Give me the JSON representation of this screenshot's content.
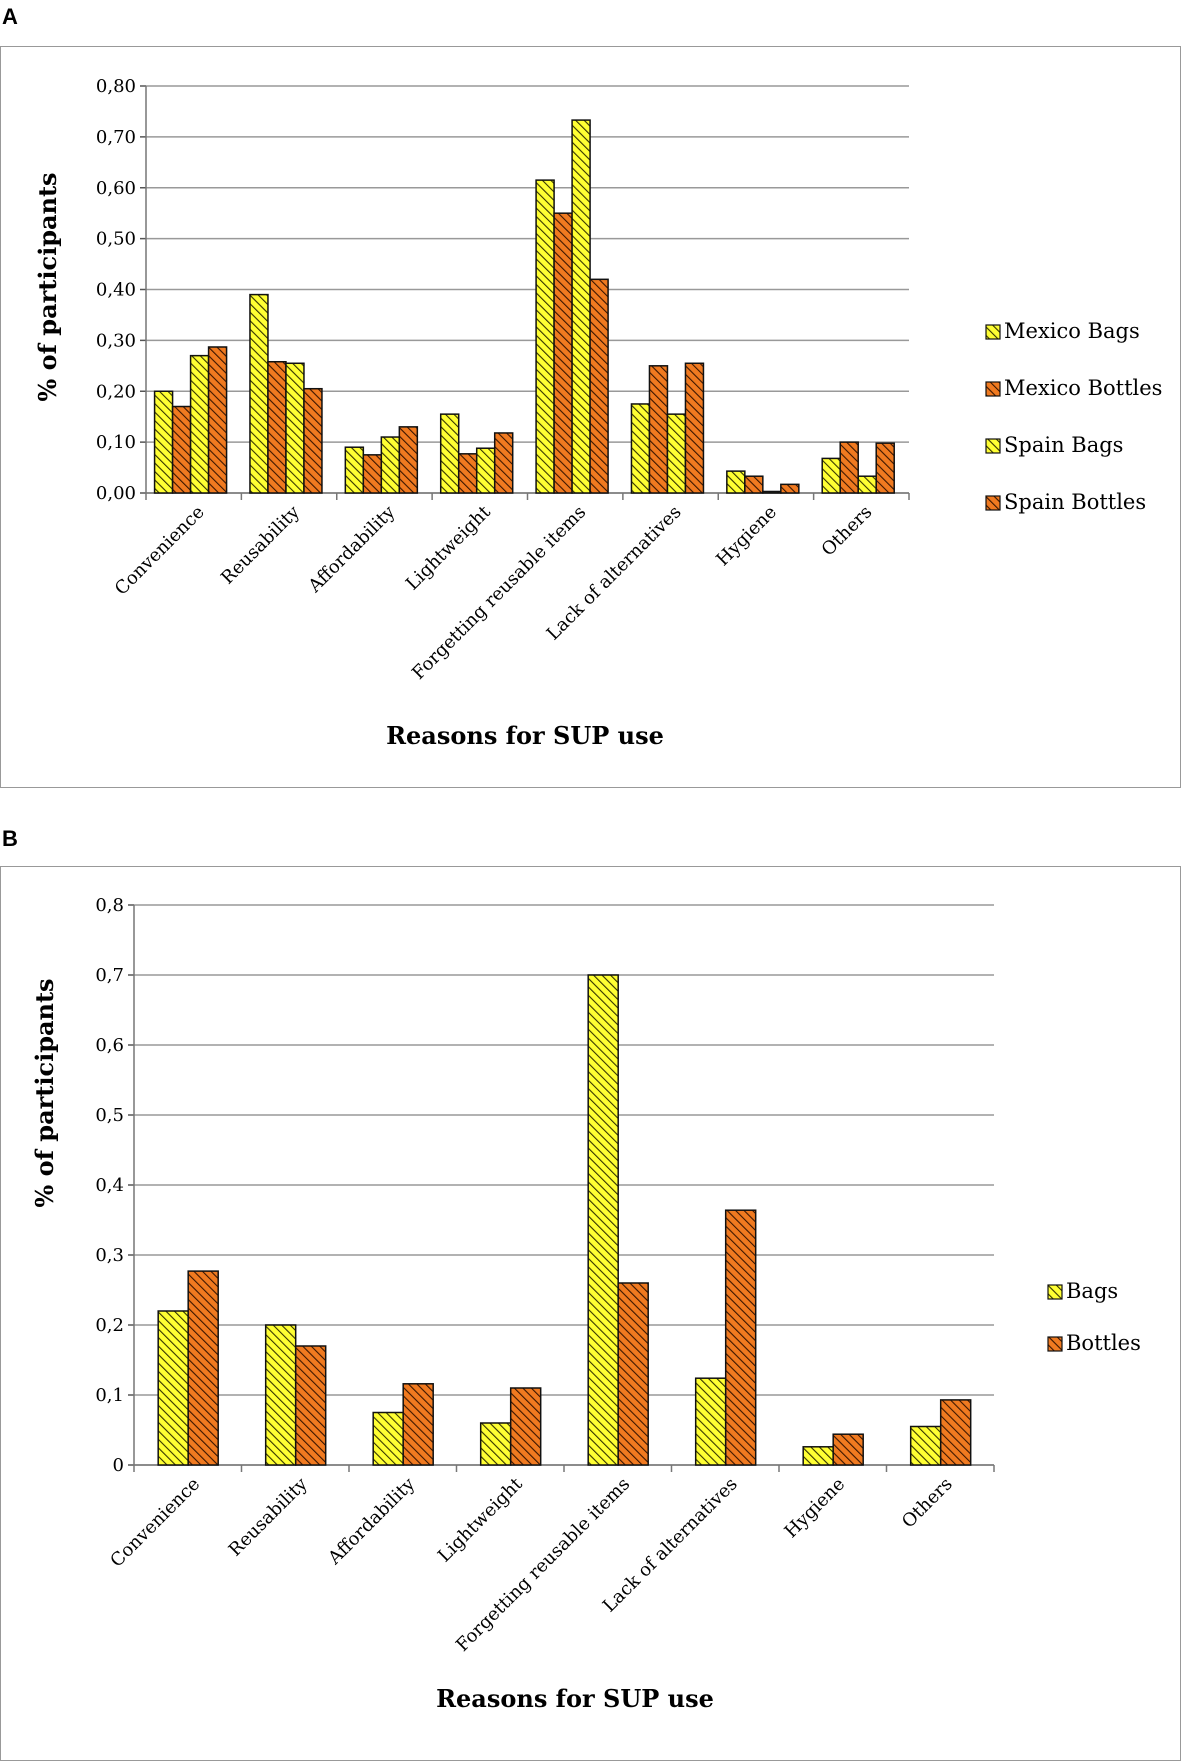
{
  "chart_data": [
    {
      "panel": "A",
      "type": "bar",
      "categories": [
        "Convenience",
        "Reusability",
        "Affordability",
        "Lightweight",
        "Forgetting reusable items",
        "Lack of alternatives",
        "Hygiene",
        "Others"
      ],
      "series": [
        {
          "name": "Mexico Bags",
          "values": [
            0.2,
            0.39,
            0.09,
            0.155,
            0.615,
            0.175,
            0.043,
            0.068
          ],
          "color": "#ffff33",
          "hatch": "#333300"
        },
        {
          "name": "Mexico Bottles",
          "values": [
            0.17,
            0.258,
            0.075,
            0.077,
            0.55,
            0.25,
            0.033,
            0.1
          ],
          "color": "#f07a20",
          "hatch": "#3a1500"
        },
        {
          "name": "Spain Bags",
          "values": [
            0.27,
            0.255,
            0.11,
            0.088,
            0.733,
            0.155,
            0.003,
            0.033
          ],
          "color": "#ffff33",
          "hatch": "#333300"
        },
        {
          "name": "Spain Bottles",
          "values": [
            0.287,
            0.205,
            0.13,
            0.118,
            0.42,
            0.255,
            0.017,
            0.098
          ],
          "color": "#f07a20",
          "hatch": "#3a1500"
        }
      ],
      "ylim": [
        0,
        0.8
      ],
      "yticks": [
        0,
        0.1,
        0.2,
        0.3,
        0.4,
        0.5,
        0.6,
        0.7,
        0.8
      ],
      "ytick_labels": [
        "0,00",
        "0,10",
        "0,20",
        "0,30",
        "0,40",
        "0,50",
        "0,60",
        "0,70",
        "0,80"
      ],
      "ylabel": "% of participants",
      "xlabel": "Reasons for SUP use",
      "grid": true,
      "legend": "right"
    },
    {
      "panel": "B",
      "type": "bar",
      "categories": [
        "Convenience",
        "Reusability",
        "Affordability",
        "Lightweight",
        "Forgetting reusable items",
        "Lack of alternatives",
        "Hygiene",
        "Others"
      ],
      "series": [
        {
          "name": "Bags",
          "values": [
            0.22,
            0.2,
            0.075,
            0.06,
            0.7,
            0.124,
            0.026,
            0.055
          ],
          "color": "#ffff33",
          "hatch": "#333300"
        },
        {
          "name": "Bottles",
          "values": [
            0.277,
            0.17,
            0.116,
            0.11,
            0.26,
            0.364,
            0.044,
            0.093
          ],
          "color": "#f07a20",
          "hatch": "#3a1500"
        }
      ],
      "ylim": [
        0,
        0.8
      ],
      "yticks": [
        0,
        0.1,
        0.2,
        0.3,
        0.4,
        0.5,
        0.6,
        0.7,
        0.8
      ],
      "ytick_labels": [
        "0",
        "0,1",
        "0,2",
        "0,3",
        "0,4",
        "0,5",
        "0,6",
        "0,7",
        "0,8"
      ],
      "ylabel": "% of participants",
      "xlabel": "Reasons for SUP use",
      "grid": true,
      "legend": "right"
    }
  ],
  "panels": {
    "a_label": "A",
    "b_label": "B"
  }
}
